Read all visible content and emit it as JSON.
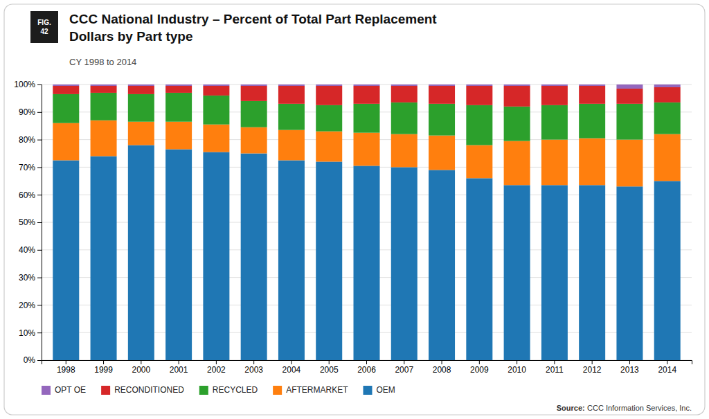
{
  "chart_data": {
    "type": "bar",
    "stacked": true,
    "title": [
      "CCC National Industry – Percent of Total Part Replacement",
      "Dollars by Part type"
    ],
    "subtitle": "CY 1998 to 2014",
    "annotations": [
      [
        "FIG.",
        "42"
      ],
      [
        "Source:",
        "CCC Information Services, Inc."
      ]
    ],
    "categories": [
      "1998",
      "1999",
      "2000",
      "2001",
      "2002",
      "2003",
      "2004",
      "2005",
      "2006",
      "2007",
      "2008",
      "2009",
      "2010",
      "2011",
      "2012",
      "2013",
      "2014"
    ],
    "series": [
      {
        "name": "OEM",
        "values": [
          72.5,
          74.0,
          78.0,
          76.5,
          75.5,
          75.0,
          72.5,
          72.0,
          70.5,
          70.0,
          69.0,
          66.0,
          63.5,
          63.5,
          63.5,
          63.0,
          65.0
        ]
      },
      {
        "name": "AFTERMARKET",
        "values": [
          13.5,
          13.0,
          8.5,
          10.0,
          10.0,
          9.5,
          11.0,
          11.0,
          12.0,
          12.0,
          12.5,
          12.0,
          16.0,
          16.5,
          17.0,
          17.0,
          17.0
        ]
      },
      {
        "name": "RECYCLED",
        "values": [
          10.5,
          10.0,
          10.0,
          10.5,
          10.5,
          9.5,
          9.5,
          9.5,
          10.5,
          11.5,
          11.5,
          14.5,
          12.5,
          12.5,
          12.5,
          13.0,
          11.5
        ]
      },
      {
        "name": "RECONDITIONED",
        "values": [
          3.0,
          2.5,
          3.0,
          2.5,
          3.5,
          5.5,
          6.5,
          7.0,
          6.5,
          6.0,
          6.5,
          7.0,
          7.5,
          7.0,
          6.5,
          5.5,
          5.5
        ]
      },
      {
        "name": "OPT OE",
        "values": [
          0.5,
          0.5,
          0.5,
          0.5,
          0.5,
          0.5,
          0.5,
          0.5,
          0.5,
          0.5,
          0.5,
          0.5,
          0.5,
          0.5,
          0.5,
          1.5,
          1.0
        ]
      }
    ],
    "ylim": [
      0,
      100
    ],
    "yticks": [
      {
        "value": 0,
        "label": "0%"
      },
      {
        "value": 10,
        "label": "10%"
      },
      {
        "value": 20,
        "label": "20%"
      },
      {
        "value": 30,
        "label": "30%"
      },
      {
        "value": 40,
        "label": "40%"
      },
      {
        "value": 50,
        "label": "50%"
      },
      {
        "value": 60,
        "label": "60%"
      },
      {
        "value": 70,
        "label": "70%"
      },
      {
        "value": 80,
        "label": "80%"
      },
      {
        "value": 90,
        "label": "90%"
      },
      {
        "value": 100,
        "label": "100%"
      }
    ],
    "grid": true,
    "legend": "lower left"
  }
}
